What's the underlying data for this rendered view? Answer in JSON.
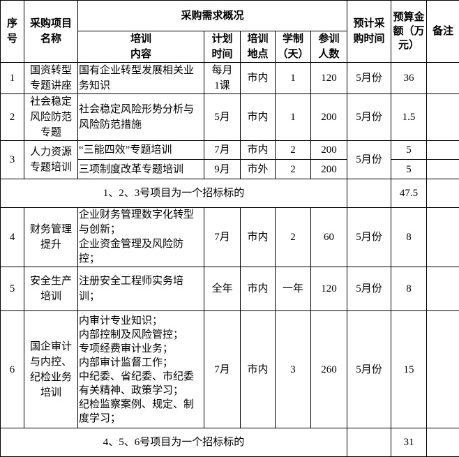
{
  "headers": {
    "seq": "序\n号",
    "name": "采购项目\n名称",
    "overview": "采购需求概况",
    "content": "培训\n内容",
    "time": "计划\n时间",
    "place": "培训\n地点",
    "duration": "学制\n（天）",
    "people": "参训\n人数",
    "purchase_time": "预计采\n购时间",
    "budget": "预算金\n额（万\n元）",
    "remark": "备注"
  },
  "rows": [
    {
      "seq": "1",
      "name": "国资转型\n专题讲座",
      "content": "国有企业转型发展相关业务知识",
      "time": "每月\n1课",
      "place": "市内",
      "duration": "1",
      "people": "120",
      "purchase_time": "5月份",
      "budget": "36"
    },
    {
      "seq": "2",
      "name": "社会稳定\n风险防范\n专题",
      "content": "社会稳定风险形势分析与风险防范措施",
      "time": "5月",
      "place": "市内",
      "duration": "1",
      "people": "200",
      "purchase_time": "5月份",
      "budget": "1.5"
    },
    {
      "seq": "3",
      "name": "人力资源\n专题培训",
      "purchase_time": "5月份",
      "subs": [
        {
          "content": "“三能四效”专题培训",
          "time": "7月",
          "place": "市内",
          "duration": "2",
          "people": "200",
          "budget": "5"
        },
        {
          "content": "三项制度改革专题培训",
          "time": "9月",
          "place": "市外",
          "duration": "2",
          "people": "200",
          "budget": "5"
        }
      ]
    },
    {
      "seq": "4",
      "name": "财务管理\n提升",
      "content": "企业财务管理数字化转型与创新；\n企业资金管理及风险防控；",
      "time": "7月",
      "place": "市内",
      "duration": "2",
      "people": "60",
      "purchase_time": "5月份",
      "budget": "8"
    },
    {
      "seq": "5",
      "name": "安全生产\n培训",
      "content": "注册安全工程师实务培训；",
      "time": "全年",
      "place": "市内",
      "duration": "一年",
      "people": "120",
      "purchase_time": "5月份",
      "budget": "8"
    },
    {
      "seq": "6",
      "name": "国企审计与内控、纪检业务培训",
      "content": "内审计专业知识；\n内部控制及风险管控；\n专项经费审计业务；\n内部审计监督工作；\n中纪委、省纪委、市纪委有关精神、政策学习；\n纪检监察案例、规定、制度学习；",
      "time": "7月",
      "place": "市内",
      "duration": "3",
      "people": "260",
      "purchase_time": "5月份",
      "budget": "15"
    }
  ],
  "summaries": [
    {
      "text": "1、2、3号项目为一个招标标的",
      "budget": "47.5"
    },
    {
      "text": "4、5、6号项目为一个招标标的",
      "budget": "31"
    }
  ]
}
